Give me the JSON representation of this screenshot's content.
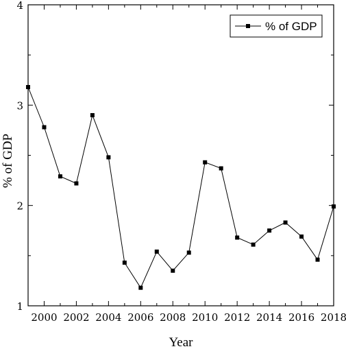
{
  "chart_data": {
    "type": "line",
    "xlabel": "Year",
    "ylabel": "% of GDP",
    "xlim": [
      1999,
      2018
    ],
    "ylim": [
      1,
      4
    ],
    "x_ticks": [
      2000,
      2002,
      2004,
      2006,
      2008,
      2010,
      2012,
      2014,
      2016,
      2018
    ],
    "y_ticks": [
      1,
      2,
      3,
      4
    ],
    "legend_position": "top-right",
    "grid": false,
    "series": [
      {
        "name": "% of GDP",
        "color": "#000000",
        "marker": "square",
        "x": [
          1999,
          2000,
          2001,
          2002,
          2003,
          2004,
          2005,
          2006,
          2007,
          2008,
          2009,
          2010,
          2011,
          2012,
          2013,
          2014,
          2015,
          2016,
          2017,
          2018
        ],
        "y": [
          3.18,
          2.78,
          2.29,
          2.22,
          2.9,
          2.48,
          1.43,
          1.18,
          1.54,
          1.35,
          1.53,
          2.43,
          2.37,
          1.68,
          1.61,
          1.75,
          1.83,
          1.69,
          1.46,
          1.99
        ]
      }
    ]
  }
}
